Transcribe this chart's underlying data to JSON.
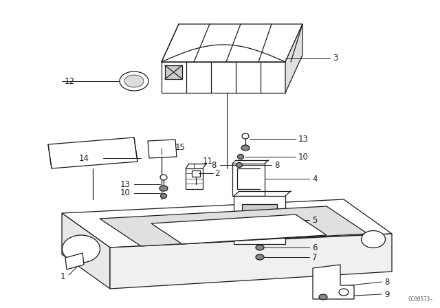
{
  "bg_color": "#ffffff",
  "line_color": "#000000",
  "watermark": "CC00573-",
  "fig_width": 6.4,
  "fig_height": 4.48,
  "dpi": 100
}
